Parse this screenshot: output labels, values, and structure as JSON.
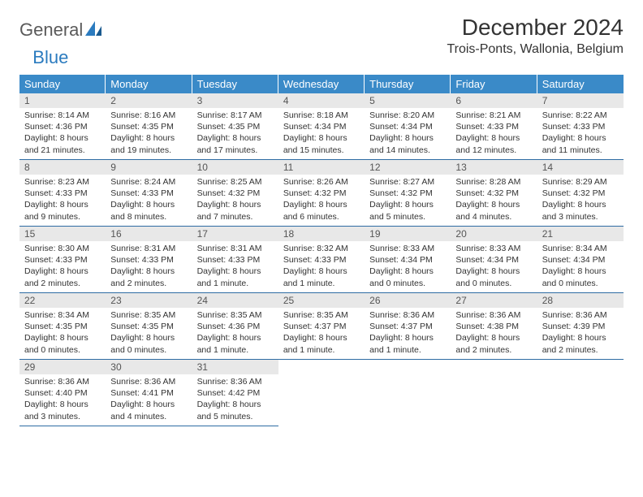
{
  "logo": {
    "word1": "General",
    "word2": "Blue"
  },
  "header": {
    "month_title": "December 2024",
    "location": "Trois-Ponts, Wallonia, Belgium"
  },
  "colors": {
    "header_bg": "#3a8ac8",
    "header_text": "#ffffff",
    "daynum_bg": "#e8e8e8",
    "daynum_text": "#555555",
    "rule": "#2e6ca3",
    "body_text": "#333333",
    "logo_gray": "#5a5a5a",
    "logo_blue": "#2b7bbf"
  },
  "day_names": [
    "Sunday",
    "Monday",
    "Tuesday",
    "Wednesday",
    "Thursday",
    "Friday",
    "Saturday"
  ],
  "weeks": [
    [
      {
        "num": "1",
        "sunrise": "Sunrise: 8:14 AM",
        "sunset": "Sunset: 4:36 PM",
        "day1": "Daylight: 8 hours",
        "day2": "and 21 minutes."
      },
      {
        "num": "2",
        "sunrise": "Sunrise: 8:16 AM",
        "sunset": "Sunset: 4:35 PM",
        "day1": "Daylight: 8 hours",
        "day2": "and 19 minutes."
      },
      {
        "num": "3",
        "sunrise": "Sunrise: 8:17 AM",
        "sunset": "Sunset: 4:35 PM",
        "day1": "Daylight: 8 hours",
        "day2": "and 17 minutes."
      },
      {
        "num": "4",
        "sunrise": "Sunrise: 8:18 AM",
        "sunset": "Sunset: 4:34 PM",
        "day1": "Daylight: 8 hours",
        "day2": "and 15 minutes."
      },
      {
        "num": "5",
        "sunrise": "Sunrise: 8:20 AM",
        "sunset": "Sunset: 4:34 PM",
        "day1": "Daylight: 8 hours",
        "day2": "and 14 minutes."
      },
      {
        "num": "6",
        "sunrise": "Sunrise: 8:21 AM",
        "sunset": "Sunset: 4:33 PM",
        "day1": "Daylight: 8 hours",
        "day2": "and 12 minutes."
      },
      {
        "num": "7",
        "sunrise": "Sunrise: 8:22 AM",
        "sunset": "Sunset: 4:33 PM",
        "day1": "Daylight: 8 hours",
        "day2": "and 11 minutes."
      }
    ],
    [
      {
        "num": "8",
        "sunrise": "Sunrise: 8:23 AM",
        "sunset": "Sunset: 4:33 PM",
        "day1": "Daylight: 8 hours",
        "day2": "and 9 minutes."
      },
      {
        "num": "9",
        "sunrise": "Sunrise: 8:24 AM",
        "sunset": "Sunset: 4:33 PM",
        "day1": "Daylight: 8 hours",
        "day2": "and 8 minutes."
      },
      {
        "num": "10",
        "sunrise": "Sunrise: 8:25 AM",
        "sunset": "Sunset: 4:32 PM",
        "day1": "Daylight: 8 hours",
        "day2": "and 7 minutes."
      },
      {
        "num": "11",
        "sunrise": "Sunrise: 8:26 AM",
        "sunset": "Sunset: 4:32 PM",
        "day1": "Daylight: 8 hours",
        "day2": "and 6 minutes."
      },
      {
        "num": "12",
        "sunrise": "Sunrise: 8:27 AM",
        "sunset": "Sunset: 4:32 PM",
        "day1": "Daylight: 8 hours",
        "day2": "and 5 minutes."
      },
      {
        "num": "13",
        "sunrise": "Sunrise: 8:28 AM",
        "sunset": "Sunset: 4:32 PM",
        "day1": "Daylight: 8 hours",
        "day2": "and 4 minutes."
      },
      {
        "num": "14",
        "sunrise": "Sunrise: 8:29 AM",
        "sunset": "Sunset: 4:32 PM",
        "day1": "Daylight: 8 hours",
        "day2": "and 3 minutes."
      }
    ],
    [
      {
        "num": "15",
        "sunrise": "Sunrise: 8:30 AM",
        "sunset": "Sunset: 4:33 PM",
        "day1": "Daylight: 8 hours",
        "day2": "and 2 minutes."
      },
      {
        "num": "16",
        "sunrise": "Sunrise: 8:31 AM",
        "sunset": "Sunset: 4:33 PM",
        "day1": "Daylight: 8 hours",
        "day2": "and 2 minutes."
      },
      {
        "num": "17",
        "sunrise": "Sunrise: 8:31 AM",
        "sunset": "Sunset: 4:33 PM",
        "day1": "Daylight: 8 hours",
        "day2": "and 1 minute."
      },
      {
        "num": "18",
        "sunrise": "Sunrise: 8:32 AM",
        "sunset": "Sunset: 4:33 PM",
        "day1": "Daylight: 8 hours",
        "day2": "and 1 minute."
      },
      {
        "num": "19",
        "sunrise": "Sunrise: 8:33 AM",
        "sunset": "Sunset: 4:34 PM",
        "day1": "Daylight: 8 hours",
        "day2": "and 0 minutes."
      },
      {
        "num": "20",
        "sunrise": "Sunrise: 8:33 AM",
        "sunset": "Sunset: 4:34 PM",
        "day1": "Daylight: 8 hours",
        "day2": "and 0 minutes."
      },
      {
        "num": "21",
        "sunrise": "Sunrise: 8:34 AM",
        "sunset": "Sunset: 4:34 PM",
        "day1": "Daylight: 8 hours",
        "day2": "and 0 minutes."
      }
    ],
    [
      {
        "num": "22",
        "sunrise": "Sunrise: 8:34 AM",
        "sunset": "Sunset: 4:35 PM",
        "day1": "Daylight: 8 hours",
        "day2": "and 0 minutes."
      },
      {
        "num": "23",
        "sunrise": "Sunrise: 8:35 AM",
        "sunset": "Sunset: 4:35 PM",
        "day1": "Daylight: 8 hours",
        "day2": "and 0 minutes."
      },
      {
        "num": "24",
        "sunrise": "Sunrise: 8:35 AM",
        "sunset": "Sunset: 4:36 PM",
        "day1": "Daylight: 8 hours",
        "day2": "and 1 minute."
      },
      {
        "num": "25",
        "sunrise": "Sunrise: 8:35 AM",
        "sunset": "Sunset: 4:37 PM",
        "day1": "Daylight: 8 hours",
        "day2": "and 1 minute."
      },
      {
        "num": "26",
        "sunrise": "Sunrise: 8:36 AM",
        "sunset": "Sunset: 4:37 PM",
        "day1": "Daylight: 8 hours",
        "day2": "and 1 minute."
      },
      {
        "num": "27",
        "sunrise": "Sunrise: 8:36 AM",
        "sunset": "Sunset: 4:38 PM",
        "day1": "Daylight: 8 hours",
        "day2": "and 2 minutes."
      },
      {
        "num": "28",
        "sunrise": "Sunrise: 8:36 AM",
        "sunset": "Sunset: 4:39 PM",
        "day1": "Daylight: 8 hours",
        "day2": "and 2 minutes."
      }
    ],
    [
      {
        "num": "29",
        "sunrise": "Sunrise: 8:36 AM",
        "sunset": "Sunset: 4:40 PM",
        "day1": "Daylight: 8 hours",
        "day2": "and 3 minutes."
      },
      {
        "num": "30",
        "sunrise": "Sunrise: 8:36 AM",
        "sunset": "Sunset: 4:41 PM",
        "day1": "Daylight: 8 hours",
        "day2": "and 4 minutes."
      },
      {
        "num": "31",
        "sunrise": "Sunrise: 8:36 AM",
        "sunset": "Sunset: 4:42 PM",
        "day1": "Daylight: 8 hours",
        "day2": "and 5 minutes."
      },
      null,
      null,
      null,
      null
    ]
  ]
}
